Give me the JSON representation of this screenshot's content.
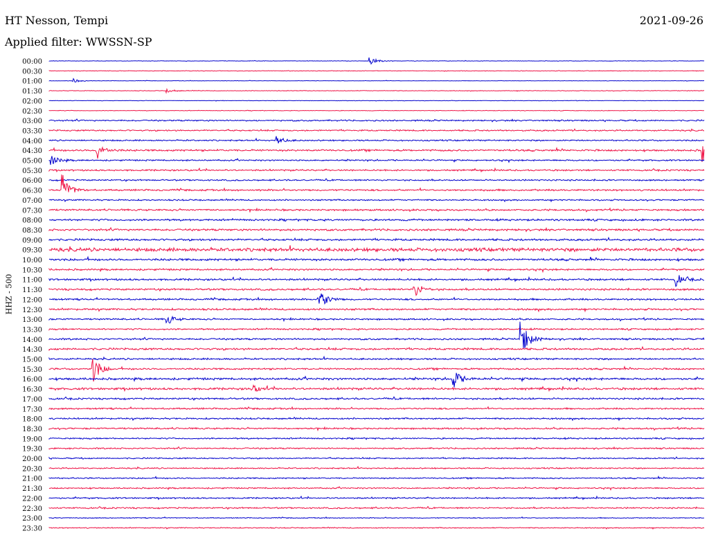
{
  "header": {
    "station": "HT Nesson, Tempi",
    "date": "2021-09-26",
    "filter": "Applied filter: WWSSN-SP"
  },
  "chart_data": {
    "type": "line",
    "title": "HT Nesson, Tempi",
    "ylabel": "HHZ - 500",
    "colors": [
      "#0000cc",
      "#ee1144"
    ],
    "x_per_row_minutes": 30,
    "rows": [
      "00:00",
      "00:30",
      "01:00",
      "01:30",
      "02:00",
      "02:30",
      "03:00",
      "03:30",
      "04:00",
      "04:30",
      "05:00",
      "05:30",
      "06:00",
      "06:30",
      "07:00",
      "07:30",
      "08:00",
      "08:30",
      "09:00",
      "09:30",
      "10:00",
      "10:30",
      "11:00",
      "11:30",
      "12:00",
      "12:30",
      "13:00",
      "13:30",
      "14:00",
      "14:30",
      "15:00",
      "15:30",
      "16:00",
      "16:30",
      "17:00",
      "17:30",
      "18:00",
      "18:30",
      "19:00",
      "19:30",
      "20:00",
      "20:30",
      "21:00",
      "21:30",
      "22:00",
      "22:30",
      "23:00",
      "23:30"
    ],
    "noise": [
      0.3,
      0.4,
      0.3,
      0.4,
      0.3,
      0.4,
      1.0,
      1.0,
      1.0,
      1.3,
      1.0,
      1.1,
      1.0,
      1.2,
      1.0,
      1.2,
      1.3,
      1.4,
      1.4,
      2.4,
      1.5,
      1.2,
      1.3,
      1.3,
      1.2,
      1.3,
      1.1,
      1.1,
      1.2,
      1.4,
      1.2,
      1.2,
      1.5,
      1.5,
      1.2,
      1.1,
      1.1,
      1.1,
      1.0,
      1.0,
      0.9,
      0.9,
      0.9,
      0.9,
      1.0,
      1.0,
      0.6,
      0.7
    ],
    "events": [
      {
        "row": 0,
        "minute": 14.7,
        "amplitude": 6
      },
      {
        "row": 2,
        "minute": 1.1,
        "amplitude": 3
      },
      {
        "row": 3,
        "minute": 5.4,
        "amplitude": 3
      },
      {
        "row": 8,
        "minute": 10.4,
        "amplitude": 6
      },
      {
        "row": 9,
        "minute": 2.2,
        "amplitude": 12
      },
      {
        "row": 9,
        "minute": 29.9,
        "amplitude": 16
      },
      {
        "row": 10,
        "minute": 0.1,
        "amplitude": 7
      },
      {
        "row": 13,
        "minute": 0.6,
        "amplitude": 22
      },
      {
        "row": 22,
        "minute": 28.7,
        "amplitude": 9
      },
      {
        "row": 23,
        "minute": 16.7,
        "amplitude": 12
      },
      {
        "row": 24,
        "minute": 12.4,
        "amplitude": 14
      },
      {
        "row": 26,
        "minute": 5.4,
        "amplitude": 7
      },
      {
        "row": 28,
        "minute": 21.6,
        "amplitude": 28
      },
      {
        "row": 31,
        "minute": 2.0,
        "amplitude": 20
      },
      {
        "row": 32,
        "minute": 18.5,
        "amplitude": 14
      },
      {
        "row": 33,
        "minute": 9.3,
        "amplitude": 6
      }
    ]
  }
}
